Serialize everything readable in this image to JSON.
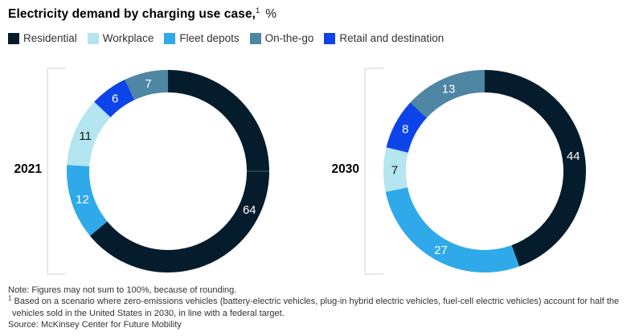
{
  "title": {
    "text": "Electricity demand by charging use case,",
    "superscript": "1",
    "unit": "%"
  },
  "legend": {
    "items": [
      {
        "label": "Residential",
        "color": "#051c2c"
      },
      {
        "label": "Workplace",
        "color": "#b4e5f0"
      },
      {
        "label": "Fleet depots",
        "color": "#2fa9e9"
      },
      {
        "label": "On-the-go",
        "color": "#4e86a4"
      },
      {
        "label": "Retail and destination",
        "color": "#0d44ea"
      }
    ]
  },
  "chart_data": [
    {
      "type": "donut",
      "year": "2021",
      "unit": "%",
      "order": "clockwise-from-top",
      "segments": [
        {
          "label": "Residential",
          "value": 64,
          "color": "#051c2c",
          "value_label_color": "#ffffff"
        },
        {
          "label": "Fleet depots",
          "value": 12,
          "color": "#2fa9e9",
          "value_label_color": "#ffffff"
        },
        {
          "label": "Workplace",
          "value": 11,
          "color": "#b4e5f0",
          "value_label_color": "#1a1a1a"
        },
        {
          "label": "Retail and destination",
          "value": 6,
          "color": "#0d44ea",
          "value_label_color": "#ffffff"
        },
        {
          "label": "On-the-go",
          "value": 7,
          "color": "#4e86a4",
          "value_label_color": "#ffffff"
        }
      ],
      "tick_at_deg": 90
    },
    {
      "type": "donut",
      "year": "2030",
      "unit": "%",
      "order": "clockwise-from-top",
      "segments": [
        {
          "label": "Residential",
          "value": 44,
          "color": "#051c2c",
          "value_label_color": "#ffffff"
        },
        {
          "label": "Fleet depots",
          "value": 27,
          "color": "#2fa9e9",
          "value_label_color": "#ffffff"
        },
        {
          "label": "Workplace",
          "value": 7,
          "color": "#b4e5f0",
          "value_label_color": "#1a1a1a"
        },
        {
          "label": "Retail and destination",
          "value": 8,
          "color": "#0d44ea",
          "value_label_color": "#ffffff"
        },
        {
          "label": "On-the-go",
          "value": 13,
          "color": "#4e86a4",
          "value_label_color": "#ffffff"
        }
      ],
      "tick_at_deg": null
    }
  ],
  "notes": {
    "note": "Note: Figures may not sum to 100%, because of rounding.",
    "footnote_marker": "1",
    "footnote": "Based on a scenario where zero-emissions vehicles (battery-electric vehicles, plug-in hybrid electric vehicles, fuel-cell electric vehicles) account for half the vehicles sold in the United States in 2030, in line with a federal target.",
    "source": "Source: McKinsey Center for Future Mobility"
  }
}
